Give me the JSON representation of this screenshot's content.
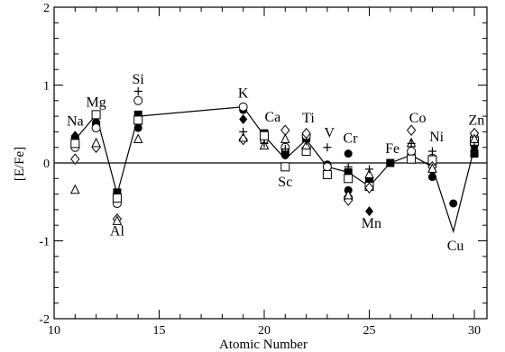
{
  "chart_data": {
    "type": "scatter",
    "title": "",
    "xlabel": "Atomic Number",
    "ylabel": "[E/Fe]",
    "xlim": [
      10,
      30.6
    ],
    "ylim": [
      -2,
      2
    ],
    "xticks": [
      10,
      15,
      20,
      25,
      30
    ],
    "yticks": [
      -2,
      -1,
      0,
      1,
      2
    ],
    "grid": false,
    "legend": "none",
    "reference_line": 0,
    "element_labels": [
      {
        "text": "Na",
        "z": 11,
        "y": 0.48
      },
      {
        "text": "Mg",
        "z": 12,
        "y": 0.72
      },
      {
        "text": "Al",
        "z": 13,
        "y": -0.93
      },
      {
        "text": "Si",
        "z": 14,
        "y": 1.02
      },
      {
        "text": "K",
        "z": 19,
        "y": 0.84
      },
      {
        "text": "Ca",
        "z": 20.4,
        "y": 0.53
      },
      {
        "text": "Sc",
        "z": 21,
        "y": -0.3
      },
      {
        "text": "Ti",
        "z": 22.1,
        "y": 0.52
      },
      {
        "text": "V",
        "z": 23.1,
        "y": 0.33
      },
      {
        "text": "Cr",
        "z": 24.1,
        "y": 0.26
      },
      {
        "text": "Mn",
        "z": 25.1,
        "y": -0.83
      },
      {
        "text": "Fe",
        "z": 26.1,
        "y": 0.13
      },
      {
        "text": "Co",
        "z": 27.3,
        "y": 0.52
      },
      {
        "text": "Ni",
        "z": 28.2,
        "y": 0.28
      },
      {
        "text": "Cu",
        "z": 29.1,
        "y": -1.12
      },
      {
        "text": "Zn",
        "z": 30.1,
        "y": 0.49
      }
    ],
    "model_line": {
      "x": [
        11,
        12,
        13,
        14,
        19,
        20,
        21,
        22,
        23,
        24,
        25,
        26,
        27,
        28,
        29,
        30
      ],
      "y": [
        0.3,
        0.62,
        -0.4,
        0.6,
        0.72,
        0.35,
        0.05,
        0.3,
        -0.05,
        -0.12,
        -0.3,
        0,
        0.1,
        -0.05,
        -0.88,
        0.2
      ]
    },
    "series": [
      {
        "marker": "filled-circle",
        "x": [
          11,
          12,
          13,
          14,
          19,
          20,
          21,
          22,
          23,
          24,
          24,
          25,
          26,
          27,
          28,
          29,
          30
        ],
        "y": [
          0.3,
          0.52,
          -0.45,
          0.45,
          0.68,
          0.32,
          0.1,
          0.32,
          -0.02,
          0.12,
          -0.35,
          -0.22,
          0,
          0.1,
          -0.18,
          -0.52,
          0.15
        ]
      },
      {
        "marker": "filled-square",
        "x": [
          11,
          12,
          13,
          14,
          20,
          21,
          22,
          24,
          25,
          26,
          27,
          28,
          30
        ],
        "y": [
          0.3,
          0.48,
          -0.38,
          0.62,
          0.38,
          0.15,
          0.32,
          -0.12,
          -0.25,
          0,
          0.08,
          0.02,
          0.12
        ]
      },
      {
        "marker": "filled-diamond",
        "x": [
          11,
          12,
          13,
          14,
          19,
          20,
          24,
          25,
          28,
          30
        ],
        "y": [
          0.35,
          0.52,
          -0.4,
          0.5,
          0.56,
          0.28,
          -0.43,
          -0.62,
          -0.1,
          0.2
        ]
      },
      {
        "marker": "open-circle",
        "x": [
          11,
          12,
          13,
          14,
          19,
          20,
          21,
          22,
          23,
          24,
          25,
          27,
          28,
          30
        ],
        "y": [
          0.2,
          0.45,
          -0.52,
          0.8,
          0.72,
          0.3,
          0.2,
          0.35,
          -0.05,
          -0.45,
          -0.3,
          0.15,
          0.06,
          0.32
        ]
      },
      {
        "marker": "open-square",
        "x": [
          11,
          12,
          13,
          14,
          20,
          21,
          22,
          23,
          24,
          25,
          27,
          28,
          30
        ],
        "y": [
          0.25,
          0.62,
          -0.45,
          0.55,
          0.35,
          -0.05,
          0.15,
          -0.15,
          -0.2,
          -0.3,
          0.05,
          0.04,
          0.28
        ]
      },
      {
        "marker": "open-diamond",
        "x": [
          11,
          12,
          13,
          19,
          21,
          22,
          24,
          25,
          27,
          28,
          30
        ],
        "y": [
          0.05,
          0.2,
          -0.72,
          0.3,
          0.42,
          0.38,
          -0.48,
          -0.32,
          0.42,
          -0.05,
          0.38
        ]
      },
      {
        "marker": "open-triangle",
        "x": [
          11,
          12,
          13,
          14,
          19,
          20,
          21,
          22,
          24,
          25,
          27,
          28,
          30
        ],
        "y": [
          -0.35,
          0.25,
          -0.75,
          0.3,
          0.32,
          0.22,
          0.3,
          0.22,
          -0.42,
          -0.15,
          0.25,
          -0.08,
          0.3
        ]
      },
      {
        "marker": "plus",
        "x": [
          14,
          19,
          20,
          21,
          22,
          23,
          24,
          25,
          27,
          28,
          30
        ],
        "y": [
          0.92,
          0.4,
          0.25,
          0.18,
          0.28,
          0.2,
          -0.05,
          -0.08,
          0.25,
          0.15,
          0.22
        ]
      }
    ]
  }
}
